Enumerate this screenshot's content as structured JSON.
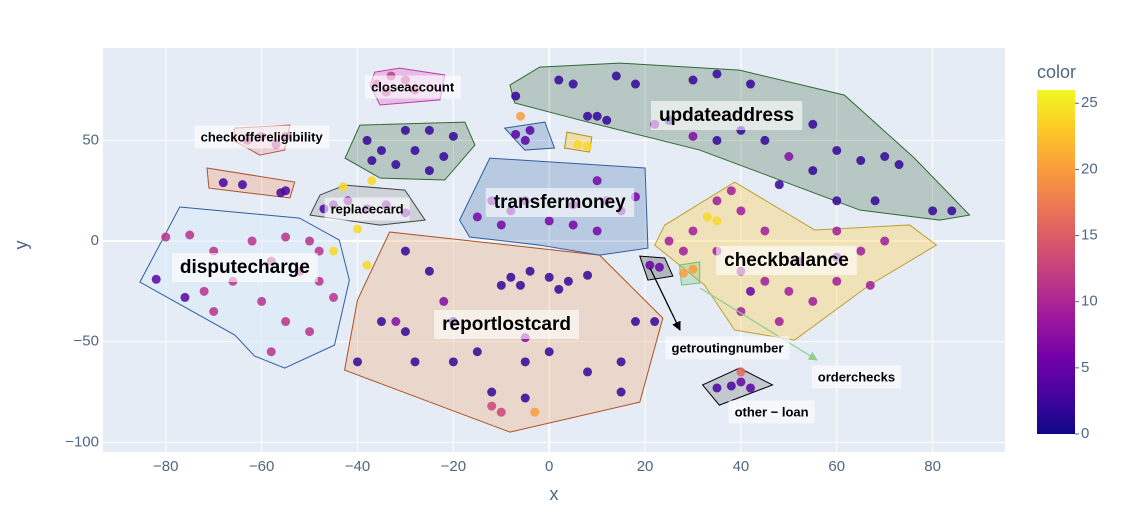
{
  "chart_data": {
    "type": "scatter",
    "xlabel": "x",
    "ylabel": "y",
    "xlim": [
      -93.1,
      95.1
    ],
    "ylim": [
      -104.8,
      95.9
    ],
    "xticks": [
      {
        "value": -80,
        "label": "−80"
      },
      {
        "value": -60,
        "label": "−60"
      },
      {
        "value": -40,
        "label": "−40"
      },
      {
        "value": -20,
        "label": "−20"
      },
      0,
      20,
      40,
      60,
      80
    ],
    "yticks": [
      {
        "value": -100,
        "label": "−100"
      },
      {
        "value": -50,
        "label": "−50"
      },
      0,
      50
    ],
    "grid": true,
    "colorbar_title": "color",
    "clim": [
      0,
      26
    ],
    "cticks": [
      0,
      5,
      10,
      15,
      20,
      25
    ],
    "colorscale": [
      "#0d0887",
      "#46039f",
      "#7201a8",
      "#9c179e",
      "#bd3786",
      "#d8576b",
      "#ed7953",
      "#fb9f3a",
      "#fdca26",
      "#f0f921"
    ],
    "x": [
      2,
      5,
      14,
      18,
      30,
      35,
      42,
      8,
      10,
      12,
      25,
      40,
      45,
      55,
      60,
      65,
      55,
      70,
      73,
      60,
      68,
      80,
      84,
      48,
      35,
      22,
      30,
      50,
      -7,
      -38,
      -30,
      -25,
      -20,
      -35,
      -28,
      -22,
      -32,
      -25,
      -37,
      -36,
      -33,
      -30,
      -28,
      -34,
      -63,
      -60,
      -57,
      -55,
      -68,
      -64,
      -56,
      -55,
      -45,
      -42,
      -38,
      -34,
      -30,
      -47,
      -37,
      -43,
      -40,
      -38,
      -45,
      6,
      8,
      -80,
      -75,
      -70,
      -62,
      -55,
      -50,
      -48,
      -58,
      -52,
      -66,
      -72,
      -60,
      -48,
      -45,
      -55,
      -50,
      -58,
      -70,
      -82,
      -76,
      -8,
      -4,
      0,
      4,
      -6,
      2,
      8,
      -10,
      -30,
      -25,
      -35,
      -30,
      -20,
      -28,
      -20,
      -15,
      -5,
      0,
      8,
      15,
      18,
      22,
      -12,
      -5,
      15,
      -40,
      -22,
      -5,
      -32,
      -12,
      -10,
      -3,
      -12,
      -8,
      -5,
      0,
      5,
      10,
      12,
      15,
      18,
      -15,
      -10,
      5,
      10,
      -7,
      -4,
      -5,
      -6,
      35,
      38,
      40,
      30,
      25,
      28,
      35,
      40,
      45,
      50,
      55,
      48,
      40,
      60,
      65,
      70,
      60,
      45,
      52,
      67,
      33,
      35,
      42,
      60,
      21,
      23,
      28,
      30,
      35,
      38,
      40,
      42,
      40
    ],
    "y": [
      80,
      78,
      82,
      78,
      80,
      83,
      78,
      62,
      62,
      60,
      60,
      55,
      50,
      58,
      45,
      40,
      35,
      42,
      38,
      20,
      20,
      15,
      15,
      28,
      50,
      58,
      52,
      42,
      72,
      50,
      55,
      55,
      52,
      45,
      45,
      42,
      38,
      35,
      40,
      78,
      82,
      80,
      75,
      74,
      50,
      52,
      48,
      52,
      29,
      28,
      24,
      25,
      18,
      20,
      16,
      18,
      14,
      16,
      30,
      27,
      6,
      -12,
      -5,
      48,
      47,
      2,
      3,
      -5,
      0,
      2,
      0,
      -5,
      -10,
      -15,
      -20,
      -25,
      -30,
      -20,
      -28,
      -40,
      -45,
      -55,
      -35,
      -19,
      -28,
      -18,
      -15,
      -18,
      -20,
      -22,
      -24,
      -17,
      -22,
      -5,
      -15,
      -40,
      -45,
      -40,
      -60,
      -60,
      -55,
      -60,
      -55,
      -65,
      -60,
      -40,
      -40,
      -75,
      -78,
      -75,
      -60,
      -30,
      -48,
      -40,
      -82,
      -85,
      -85,
      20,
      15,
      20,
      10,
      18,
      30,
      20,
      15,
      22,
      12,
      8,
      8,
      5,
      53,
      55,
      50,
      62,
      20,
      25,
      15,
      5,
      0,
      -5,
      -5,
      -15,
      -20,
      -25,
      -30,
      -40,
      -35,
      -20,
      -5,
      0,
      5,
      5,
      -10,
      -22,
      12,
      10,
      -25,
      -8,
      -12,
      -13,
      -16,
      -14,
      -73,
      -72,
      -70,
      -73,
      -65
    ],
    "color": [
      2,
      2,
      2,
      2,
      2,
      2,
      2,
      2,
      2,
      2,
      2,
      2,
      2,
      2,
      2,
      2,
      2,
      2,
      2,
      2,
      2,
      2,
      2,
      2,
      2,
      7,
      7,
      7,
      2,
      2,
      2,
      2,
      2,
      2,
      2,
      2,
      2,
      2,
      2,
      12,
      12,
      12,
      12,
      12,
      11,
      11,
      11,
      11,
      3,
      3,
      3,
      3,
      7,
      7,
      7,
      7,
      7,
      3,
      24,
      24,
      24,
      24,
      24,
      24,
      24,
      11,
      11,
      11,
      11,
      11,
      11,
      11,
      11,
      11,
      11,
      11,
      11,
      11,
      11,
      11,
      11,
      11,
      11,
      4,
      4,
      2,
      2,
      2,
      2,
      2,
      2,
      2,
      2,
      2,
      2,
      2,
      2,
      2,
      2,
      2,
      2,
      2,
      2,
      2,
      2,
      2,
      2,
      2,
      2,
      2,
      2,
      7,
      7,
      7,
      13,
      13,
      20,
      6,
      6,
      6,
      6,
      6,
      6,
      6,
      6,
      6,
      6,
      6,
      6,
      6,
      4,
      4,
      4,
      20,
      9,
      9,
      9,
      9,
      9,
      9,
      9,
      9,
      9,
      9,
      9,
      9,
      9,
      9,
      9,
      9,
      9,
      9,
      9,
      9,
      24,
      24,
      5,
      5,
      5,
      5,
      20,
      20,
      3,
      3,
      5,
      4,
      16
    ],
    "hulls": [
      {
        "fill": "rgba(47,90,47,0.25)",
        "stroke": "#2f6a2f",
        "points": [
          [
            -8.2,
            77.5
          ],
          [
            -2.0,
            86.4
          ],
          [
            14.7,
            88.4
          ],
          [
            39.7,
            84.9
          ],
          [
            61.6,
            72.5
          ],
          [
            76.2,
            41.2
          ],
          [
            87.7,
            12.9
          ],
          [
            81.5,
            10.4
          ],
          [
            64.8,
            15.4
          ],
          [
            31.4,
            45.2
          ],
          [
            6.4,
            60.1
          ],
          [
            -7.2,
            68.6
          ]
        ]
      },
      {
        "fill": "rgba(230,80,200,0.3)",
        "stroke": "#c040a0",
        "points": [
          [
            -36.4,
            83.9
          ],
          [
            -31.2,
            85.9
          ],
          [
            -21.8,
            82.5
          ],
          [
            -22.8,
            70.1
          ],
          [
            -35.3,
            67.6
          ],
          [
            -37.4,
            77.5
          ]
        ]
      },
      {
        "fill": "rgba(240,140,140,0.3)",
        "stroke": "#c05050",
        "points": [
          [
            -65.6,
            56.1
          ],
          [
            -54.1,
            57.6
          ],
          [
            -55.2,
            45.2
          ],
          [
            -60.4,
            42.7
          ],
          [
            -66.0,
            50.2
          ]
        ]
      },
      {
        "fill": "rgba(240,160,120,0.35)",
        "stroke": "#b05030",
        "points": [
          [
            -71.4,
            36.3
          ],
          [
            -53.1,
            29.3
          ],
          [
            -54.1,
            21.4
          ],
          [
            -71.0,
            26.3
          ]
        ]
      },
      {
        "fill": "rgba(47,90,47,0.25)",
        "stroke": "#2f6a2f",
        "points": [
          [
            -39.5,
            57.6
          ],
          [
            -17.6,
            59.1
          ],
          [
            -15.5,
            47.7
          ],
          [
            -21.8,
            30.3
          ],
          [
            -35.3,
            31.3
          ],
          [
            -42.6,
            41.2
          ]
        ]
      },
      {
        "fill": "rgba(150,150,150,0.3)",
        "stroke": "#444",
        "points": [
          [
            -47.8,
            22.9
          ],
          [
            -42.6,
            27.8
          ],
          [
            -30.1,
            25.3
          ],
          [
            -25.9,
            10.4
          ],
          [
            -35.3,
            7.9
          ],
          [
            -49.9,
            12.9
          ]
        ]
      },
      {
        "fill": "rgba(220,235,250,0.6)",
        "stroke": "#2f5f9f",
        "points": [
          [
            -77.1,
            16.9
          ],
          [
            -52.1,
            11.4
          ],
          [
            -43.8,
            0.5
          ],
          [
            -41.7,
            -19.4
          ],
          [
            -44.8,
            -51.7
          ],
          [
            -55.2,
            -63.1
          ],
          [
            -61.5,
            -57.1
          ],
          [
            -65.6,
            -46.7
          ],
          [
            -85.4,
            -20.4
          ]
        ]
      },
      {
        "fill": "rgba(240,190,150,0.45)",
        "stroke": "#b05020",
        "points": [
          [
            -33.3,
            4.5
          ],
          [
            10.5,
            -7.0
          ],
          [
            23.7,
            -38.3
          ],
          [
            18.9,
            -80.0
          ],
          [
            -8.2,
            -94.9
          ],
          [
            -42.7,
            -64.1
          ],
          [
            -40.0,
            -29.3
          ]
        ]
      },
      {
        "fill": "rgba(80,120,180,0.3)",
        "stroke": "#2f5f9f",
        "points": [
          [
            -12.4,
            41.2
          ],
          [
            20.0,
            36.3
          ],
          [
            20.6,
            -3.5
          ],
          [
            10.5,
            -7.0
          ],
          [
            -2.0,
            -2.0
          ],
          [
            -16.6,
            2.0
          ],
          [
            -18.7,
            10.4
          ]
        ]
      },
      {
        "fill": "rgba(80,120,180,0.3)",
        "stroke": "#2f5f9f",
        "points": [
          [
            -9.3,
            56.1
          ],
          [
            -0.9,
            59.1
          ],
          [
            1.1,
            46.2
          ],
          [
            -5.1,
            45.2
          ]
        ]
      },
      {
        "fill": "rgba(250,200,60,0.4)",
        "stroke": "#b09020",
        "points": [
          [
            3.7,
            54.1
          ],
          [
            8.9,
            51.7
          ],
          [
            8.4,
            44.2
          ],
          [
            3.2,
            46.2
          ]
        ]
      },
      {
        "fill": "rgba(250,215,110,0.45)",
        "stroke": "#c0a030",
        "points": [
          [
            38.7,
            29.3
          ],
          [
            55.4,
            5.5
          ],
          [
            75.2,
            8.0
          ],
          [
            80.8,
            -2.0
          ],
          [
            66.8,
            -21.9
          ],
          [
            51.2,
            -49.2
          ],
          [
            38.7,
            -44.2
          ],
          [
            32.4,
            -21.9
          ],
          [
            22.0,
            -2.0
          ],
          [
            24.1,
            7.9
          ]
        ]
      },
      {
        "fill": "rgba(60,60,60,0.3)",
        "stroke": "#000",
        "points": [
          [
            18.9,
            -7.5
          ],
          [
            24.1,
            -8.4
          ],
          [
            25.8,
            -17.4
          ],
          [
            20.6,
            -19.4
          ]
        ]
      },
      {
        "fill": "rgba(120,200,120,0.3)",
        "stroke": "#70c070",
        "points": [
          [
            27.2,
            -11.9
          ],
          [
            31.4,
            -10.4
          ],
          [
            31.4,
            -20.9
          ],
          [
            27.6,
            -21.9
          ]
        ]
      },
      {
        "fill": "rgba(60,60,60,0.2)",
        "stroke": "#000",
        "points": [
          [
            32.0,
            -71.5
          ],
          [
            39.7,
            -63.1
          ],
          [
            46.6,
            -71.5
          ],
          [
            35.5,
            -81.5
          ]
        ]
      }
    ],
    "annotations": [
      {
        "text": "updateaddress",
        "x": 37.0,
        "y": 62.1,
        "size": "large"
      },
      {
        "text": "closeaccount",
        "x": -28.5,
        "y": 76,
        "size": "small"
      },
      {
        "text": "checkoffereligibility",
        "x": -60,
        "y": 51.2,
        "size": "small"
      },
      {
        "text": "replacecard",
        "x": -38,
        "y": 15.4,
        "size": "small"
      },
      {
        "text": "transfermoney",
        "x": 2.2,
        "y": 18.9,
        "size": "large"
      },
      {
        "text": "disputecharge",
        "x": -63.5,
        "y": -13.4,
        "size": "large"
      },
      {
        "text": "checkbalance",
        "x": 49.5,
        "y": -9.9,
        "size": "large"
      },
      {
        "text": "reportlostcard",
        "x": -8.9,
        "y": -41.7,
        "size": "large"
      },
      {
        "text": "getroutingnumber",
        "x": 37.2,
        "y": -53.6,
        "size": "small"
      },
      {
        "text": "orderchecks",
        "x": 64.1,
        "y": -68,
        "size": "small"
      },
      {
        "text": "other − loan",
        "x": 46.4,
        "y": -85.4,
        "size": "small"
      }
    ]
  }
}
